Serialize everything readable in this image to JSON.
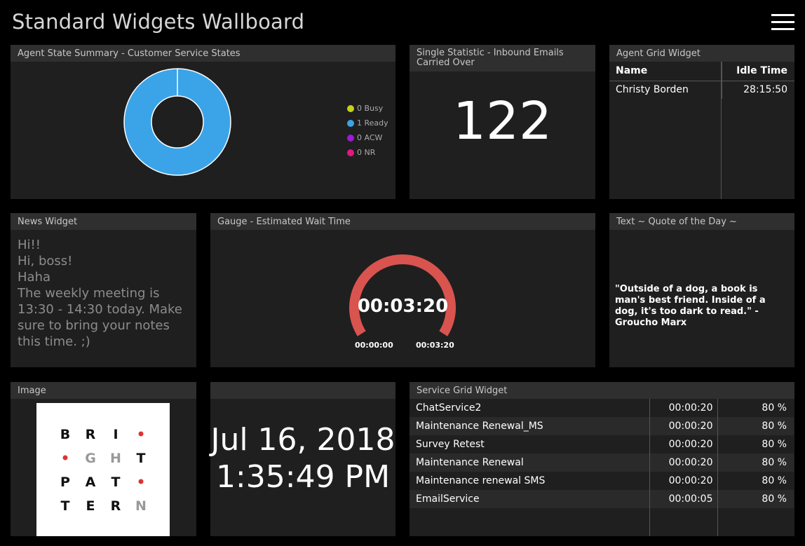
{
  "header": {
    "title": "Standard Widgets Wallboard",
    "menu_icon": "hamburger-menu-icon"
  },
  "agent_state": {
    "title": "Agent State Summary - Customer Service States",
    "chart_data": {
      "type": "pie",
      "categories": [
        "Busy",
        "Ready",
        "ACW",
        "NR"
      ],
      "values": [
        0,
        1,
        0,
        0
      ],
      "colors": [
        "#c5d11a",
        "#3ba4e8",
        "#9c1bd3",
        "#e0197f"
      ],
      "legend": [
        "0 Busy",
        "1 Ready",
        "0 ACW",
        "0 NR"
      ],
      "legend_position": "right"
    }
  },
  "single_stat": {
    "title": "Single Statistic - Inbound Emails Carried Over",
    "value": "122"
  },
  "agent_grid": {
    "title": "Agent Grid Widget",
    "columns": [
      "Name",
      "Idle Time"
    ],
    "rows": [
      [
        "Christy Borden",
        "28:15:50"
      ]
    ]
  },
  "news": {
    "title": "News Widget",
    "lines": [
      "Hi!!",
      "Hi, boss!",
      "Haha",
      "The weekly meeting is 13:30 - 14:30 today. Make sure to bring your notes this time. ;)"
    ]
  },
  "gauge": {
    "title": "Gauge - Estimated Wait Time",
    "value": "00:03:20",
    "min": "00:00:00",
    "max": "00:03:20",
    "fraction": 1.0,
    "color": "#d9534f"
  },
  "quote": {
    "title": "Text ~ Quote of the Day ~",
    "text": "\"Outside of a dog, a book is man's best friend. Inside of a dog, it's too dark to read.\" - Groucho Marx"
  },
  "image": {
    "title": "Image",
    "logo_letters": [
      "B",
      "R",
      "I",
      "•",
      "•",
      "G",
      "H",
      "T",
      "P",
      "A",
      "T",
      "•",
      "T",
      "E",
      "R",
      "N"
    ]
  },
  "clock": {
    "date": "Jul 16, 2018",
    "time": "1:35:49 PM"
  },
  "service_grid": {
    "title": "Service Grid Widget",
    "rows": [
      [
        "ChatService2",
        "00:00:20",
        "80 %"
      ],
      [
        "Maintenance Renewal_MS",
        "00:00:20",
        "80 %"
      ],
      [
        "Survey Retest",
        "00:00:20",
        "80 %"
      ],
      [
        "Maintenance Renewal",
        "00:00:20",
        "80 %"
      ],
      [
        "Maintenance renewal SMS",
        "00:00:20",
        "80 %"
      ],
      [
        "EmailService",
        "00:00:05",
        "80 %"
      ]
    ]
  }
}
